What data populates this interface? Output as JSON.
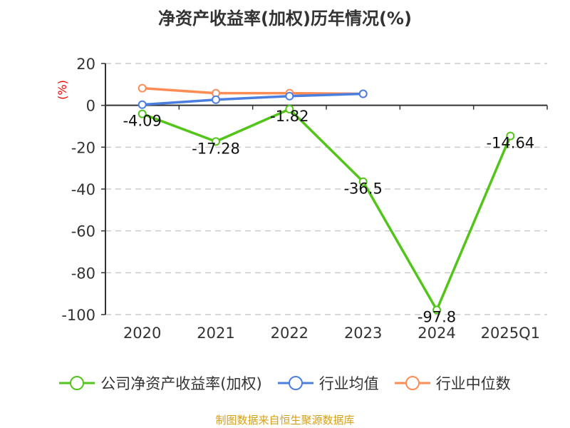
{
  "chart_data": {
    "type": "line",
    "title": "净资产收益率(加权)历年情况(%)",
    "ylabel": "(%)",
    "xlabel": "",
    "categories": [
      "2020",
      "2021",
      "2022",
      "2023",
      "2024",
      "2025Q1"
    ],
    "ylim": [
      -100,
      20
    ],
    "yticks": [
      20,
      0,
      -20,
      -40,
      -60,
      -80,
      -100
    ],
    "grid": true,
    "legend_position": "bottom",
    "series": [
      {
        "name": "公司净资产收益率(加权)",
        "color": "#52c41a",
        "values": [
          -4.09,
          -17.28,
          -1.82,
          -36.5,
          -97.8,
          -14.64
        ],
        "labels": [
          "-4.09",
          "-17.28",
          "-1.82",
          "-36.5",
          "-97.8",
          "-14.64"
        ]
      },
      {
        "name": "行业均值",
        "color": "#4a7fe0",
        "values": [
          0.3,
          2.7,
          4.4,
          5.5,
          null,
          null
        ]
      },
      {
        "name": "行业中位数",
        "color": "#ff8c55",
        "values": [
          8.2,
          5.8,
          5.8,
          5.5,
          null,
          null
        ]
      }
    ]
  },
  "source": "制图数据来自恒生聚源数据库"
}
